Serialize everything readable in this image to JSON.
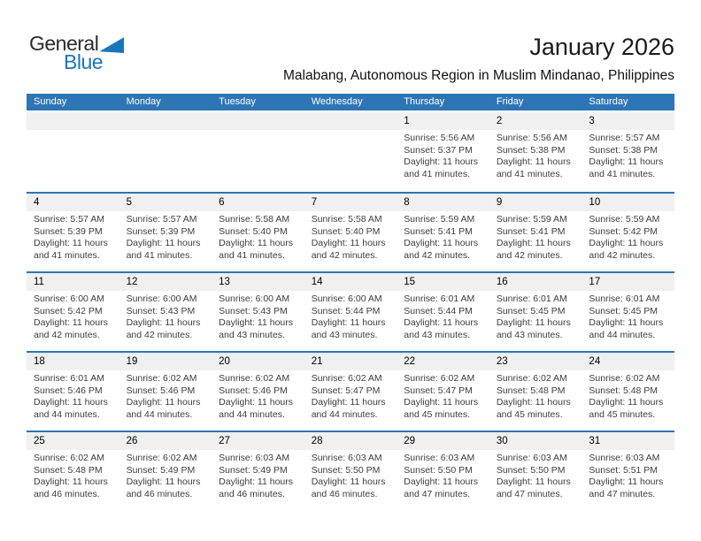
{
  "logo": {
    "general": "General",
    "blue": "Blue"
  },
  "header": {
    "title": "January 2026",
    "subtitle": "Malabang, Autonomous Region in Muslim Mindanao, Philippines"
  },
  "colors": {
    "header_bar_blue": "#2e75b6",
    "week_separator_blue": "#2e75b6",
    "day_number_band_gray": "#f0f0f0",
    "logo_blue": "#1b75bb",
    "body_text": "#3d3d3d"
  },
  "calendar": {
    "weekdays": [
      "Sunday",
      "Monday",
      "Tuesday",
      "Wednesday",
      "Thursday",
      "Friday",
      "Saturday"
    ],
    "weeks": [
      [
        null,
        null,
        null,
        null,
        {
          "day": "1",
          "sunrise": "Sunrise: 5:56 AM",
          "sunset": "Sunset: 5:37 PM",
          "daylight": "Daylight: 11 hours and 41 minutes."
        },
        {
          "day": "2",
          "sunrise": "Sunrise: 5:56 AM",
          "sunset": "Sunset: 5:38 PM",
          "daylight": "Daylight: 11 hours and 41 minutes."
        },
        {
          "day": "3",
          "sunrise": "Sunrise: 5:57 AM",
          "sunset": "Sunset: 5:38 PM",
          "daylight": "Daylight: 11 hours and 41 minutes."
        }
      ],
      [
        {
          "day": "4",
          "sunrise": "Sunrise: 5:57 AM",
          "sunset": "Sunset: 5:39 PM",
          "daylight": "Daylight: 11 hours and 41 minutes."
        },
        {
          "day": "5",
          "sunrise": "Sunrise: 5:57 AM",
          "sunset": "Sunset: 5:39 PM",
          "daylight": "Daylight: 11 hours and 41 minutes."
        },
        {
          "day": "6",
          "sunrise": "Sunrise: 5:58 AM",
          "sunset": "Sunset: 5:40 PM",
          "daylight": "Daylight: 11 hours and 41 minutes."
        },
        {
          "day": "7",
          "sunrise": "Sunrise: 5:58 AM",
          "sunset": "Sunset: 5:40 PM",
          "daylight": "Daylight: 11 hours and 42 minutes."
        },
        {
          "day": "8",
          "sunrise": "Sunrise: 5:59 AM",
          "sunset": "Sunset: 5:41 PM",
          "daylight": "Daylight: 11 hours and 42 minutes."
        },
        {
          "day": "9",
          "sunrise": "Sunrise: 5:59 AM",
          "sunset": "Sunset: 5:41 PM",
          "daylight": "Daylight: 11 hours and 42 minutes."
        },
        {
          "day": "10",
          "sunrise": "Sunrise: 5:59 AM",
          "sunset": "Sunset: 5:42 PM",
          "daylight": "Daylight: 11 hours and 42 minutes."
        }
      ],
      [
        {
          "day": "11",
          "sunrise": "Sunrise: 6:00 AM",
          "sunset": "Sunset: 5:42 PM",
          "daylight": "Daylight: 11 hours and 42 minutes."
        },
        {
          "day": "12",
          "sunrise": "Sunrise: 6:00 AM",
          "sunset": "Sunset: 5:43 PM",
          "daylight": "Daylight: 11 hours and 42 minutes."
        },
        {
          "day": "13",
          "sunrise": "Sunrise: 6:00 AM",
          "sunset": "Sunset: 5:43 PM",
          "daylight": "Daylight: 11 hours and 43 minutes."
        },
        {
          "day": "14",
          "sunrise": "Sunrise: 6:00 AM",
          "sunset": "Sunset: 5:44 PM",
          "daylight": "Daylight: 11 hours and 43 minutes."
        },
        {
          "day": "15",
          "sunrise": "Sunrise: 6:01 AM",
          "sunset": "Sunset: 5:44 PM",
          "daylight": "Daylight: 11 hours and 43 minutes."
        },
        {
          "day": "16",
          "sunrise": "Sunrise: 6:01 AM",
          "sunset": "Sunset: 5:45 PM",
          "daylight": "Daylight: 11 hours and 43 minutes."
        },
        {
          "day": "17",
          "sunrise": "Sunrise: 6:01 AM",
          "sunset": "Sunset: 5:45 PM",
          "daylight": "Daylight: 11 hours and 44 minutes."
        }
      ],
      [
        {
          "day": "18",
          "sunrise": "Sunrise: 6:01 AM",
          "sunset": "Sunset: 5:46 PM",
          "daylight": "Daylight: 11 hours and 44 minutes."
        },
        {
          "day": "19",
          "sunrise": "Sunrise: 6:02 AM",
          "sunset": "Sunset: 5:46 PM",
          "daylight": "Daylight: 11 hours and 44 minutes."
        },
        {
          "day": "20",
          "sunrise": "Sunrise: 6:02 AM",
          "sunset": "Sunset: 5:46 PM",
          "daylight": "Daylight: 11 hours and 44 minutes."
        },
        {
          "day": "21",
          "sunrise": "Sunrise: 6:02 AM",
          "sunset": "Sunset: 5:47 PM",
          "daylight": "Daylight: 11 hours and 44 minutes."
        },
        {
          "day": "22",
          "sunrise": "Sunrise: 6:02 AM",
          "sunset": "Sunset: 5:47 PM",
          "daylight": "Daylight: 11 hours and 45 minutes."
        },
        {
          "day": "23",
          "sunrise": "Sunrise: 6:02 AM",
          "sunset": "Sunset: 5:48 PM",
          "daylight": "Daylight: 11 hours and 45 minutes."
        },
        {
          "day": "24",
          "sunrise": "Sunrise: 6:02 AM",
          "sunset": "Sunset: 5:48 PM",
          "daylight": "Daylight: 11 hours and 45 minutes."
        }
      ],
      [
        {
          "day": "25",
          "sunrise": "Sunrise: 6:02 AM",
          "sunset": "Sunset: 5:48 PM",
          "daylight": "Daylight: 11 hours and 46 minutes."
        },
        {
          "day": "26",
          "sunrise": "Sunrise: 6:02 AM",
          "sunset": "Sunset: 5:49 PM",
          "daylight": "Daylight: 11 hours and 46 minutes."
        },
        {
          "day": "27",
          "sunrise": "Sunrise: 6:03 AM",
          "sunset": "Sunset: 5:49 PM",
          "daylight": "Daylight: 11 hours and 46 minutes."
        },
        {
          "day": "28",
          "sunrise": "Sunrise: 6:03 AM",
          "sunset": "Sunset: 5:50 PM",
          "daylight": "Daylight: 11 hours and 46 minutes."
        },
        {
          "day": "29",
          "sunrise": "Sunrise: 6:03 AM",
          "sunset": "Sunset: 5:50 PM",
          "daylight": "Daylight: 11 hours and 47 minutes."
        },
        {
          "day": "30",
          "sunrise": "Sunrise: 6:03 AM",
          "sunset": "Sunset: 5:50 PM",
          "daylight": "Daylight: 11 hours and 47 minutes."
        },
        {
          "day": "31",
          "sunrise": "Sunrise: 6:03 AM",
          "sunset": "Sunset: 5:51 PM",
          "daylight": "Daylight: 11 hours and 47 minutes."
        }
      ]
    ]
  }
}
